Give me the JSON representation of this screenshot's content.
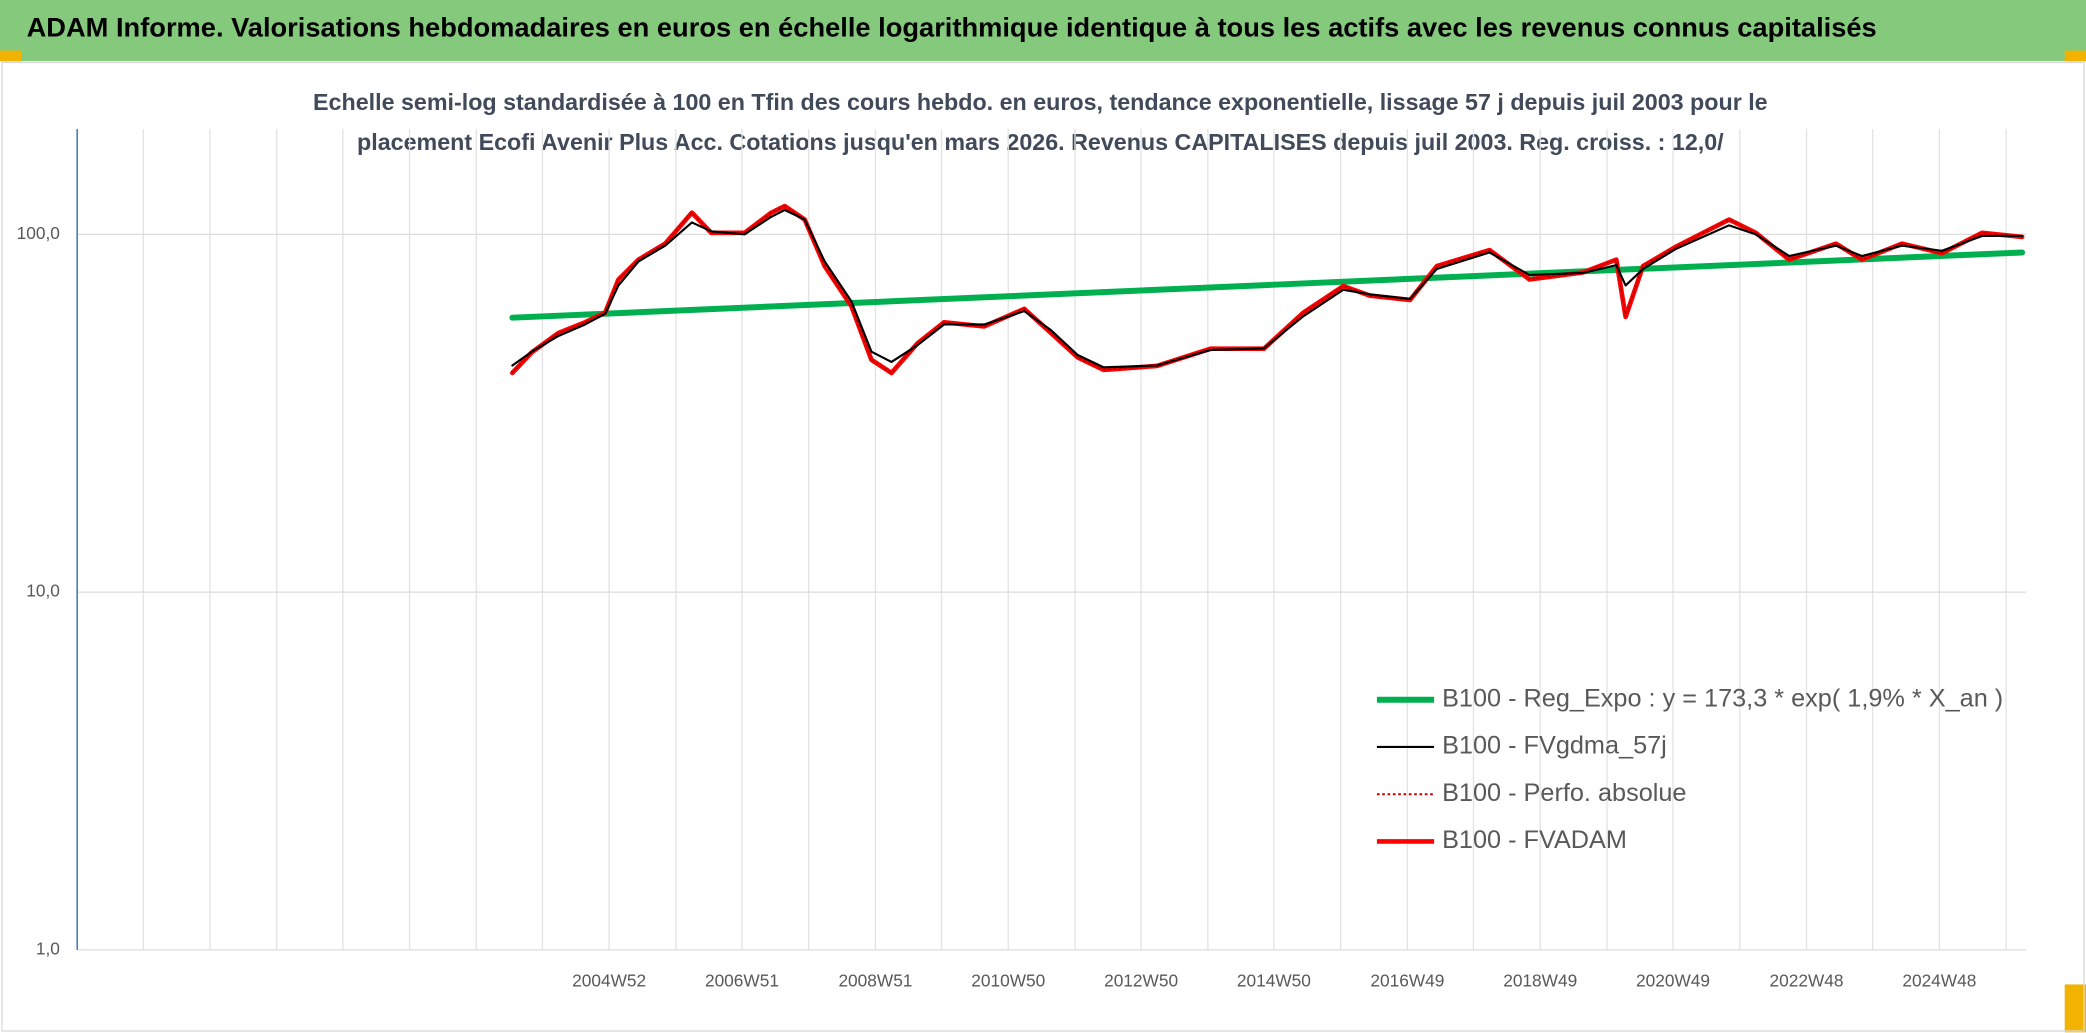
{
  "chart_data": {
    "type": "line",
    "title": "ADAM Informe. Valorisations hebdomadaires en euros en échelle logarithmique identique à tous les actifs avec les revenus connus capitalisés",
    "subtitle": [
      "Echelle semi-log standardisée à 100 en Tfin des cours hebdo. en euros, tendance exponentielle, lissage 57 j depuis juil 2003 pour le",
      "placement Ecofi Avenir Plus Acc. Cotations jusqu'en mars 2026. Revenus CAPITALISES depuis juil 2003. Reg. croiss. : 12,0/"
    ],
    "log_y": true,
    "grid": true,
    "legend_position": "right",
    "ylim": [
      1,
      197
    ],
    "yticks": [
      {
        "value": 1,
        "label": "1,0"
      },
      {
        "value": 10,
        "label": "10,0"
      },
      {
        "value": 100,
        "label": "100,0"
      }
    ],
    "xlim": [
      1997.02,
      2026.22
    ],
    "xticks": [
      {
        "value": 2004.99,
        "label": "2004W52"
      },
      {
        "value": 2006.98,
        "label": "2006W51"
      },
      {
        "value": 2008.98,
        "label": "2008W51"
      },
      {
        "value": 2010.97,
        "label": "2010W50"
      },
      {
        "value": 2012.96,
        "label": "2012W50"
      },
      {
        "value": 2014.95,
        "label": "2014W50"
      },
      {
        "value": 2016.95,
        "label": "2016W49"
      },
      {
        "value": 2018.94,
        "label": "2018W49"
      },
      {
        "value": 2020.93,
        "label": "2020W49"
      },
      {
        "value": 2022.93,
        "label": "2022W48"
      },
      {
        "value": 2024.92,
        "label": "2024W48"
      }
    ],
    "xminor": [
      1997.02,
      1998.01,
      1999.01,
      2000.01,
      2001.0,
      2002.0,
      2003.0,
      2003.99,
      2005.99,
      2007.98,
      2009.97,
      2011.97,
      2013.96,
      2015.95,
      2017.94,
      2019.94,
      2021.93,
      2023.92,
      2025.92
    ],
    "series": [
      {
        "name": "B100 - Reg_Expo : y = 173,3 * exp( 1,9% *  X_an )",
        "color": "#00b050",
        "width": 4.5,
        "dash": "none",
        "x": [
          2003.54,
          2015.0,
          2026.16
        ],
        "values": [
          58.5,
          72.4,
          89
        ]
      },
      {
        "name": "B100 - FVgdma_57j",
        "color": "#000000",
        "width": 1.6,
        "dash": "none",
        "x": [
          2003.54,
          2003.83,
          2004.23,
          2004.63,
          2004.93,
          2005.13,
          2005.43,
          2005.83,
          2006.23,
          2006.52,
          2007.02,
          2007.42,
          2007.62,
          2007.92,
          2008.22,
          2008.62,
          2008.92,
          2009.22,
          2009.61,
          2010.01,
          2010.61,
          2011.21,
          2011.61,
          2012.01,
          2012.4,
          2013.2,
          2014.0,
          2014.8,
          2015.39,
          2015.99,
          2016.39,
          2016.99,
          2017.39,
          2018.18,
          2018.78,
          2019.58,
          2020.08,
          2020.22,
          2020.48,
          2020.97,
          2021.77,
          2022.17,
          2022.67,
          2023.37,
          2023.76,
          2024.36,
          2024.96,
          2025.56,
          2026.16
        ],
        "values": [
          43,
          47,
          52,
          56,
          60,
          72,
          84,
          93,
          108,
          102,
          100,
          112,
          117,
          110,
          84,
          65,
          47,
          44,
          49,
          56,
          56,
          61,
          54,
          46,
          42.5,
          43,
          47.5,
          48,
          59,
          70,
          68,
          66,
          80,
          89,
          77,
          78,
          82,
          72,
          80,
          91,
          106,
          100,
          87,
          93,
          87,
          93,
          90,
          99,
          99
        ]
      },
      {
        "name": "B100 - Perfo. absolue",
        "color": "#c00000",
        "width": 1.2,
        "dash": "2 2",
        "x": [
          2003.54,
          2003.83,
          2004.23,
          2004.63,
          2004.93,
          2005.13,
          2005.43,
          2005.83,
          2006.23,
          2006.52,
          2007.02,
          2007.42,
          2007.62,
          2007.92,
          2008.22,
          2008.62,
          2008.92,
          2009.22,
          2009.61,
          2010.01,
          2010.61,
          2011.21,
          2011.61,
          2012.01,
          2012.4,
          2013.2,
          2014.0,
          2014.8,
          2015.39,
          2015.99,
          2016.39,
          2016.99,
          2017.39,
          2018.18,
          2018.78,
          2019.58,
          2020.08,
          2020.22,
          2020.48,
          2020.97,
          2021.77,
          2022.17,
          2022.67,
          2023.37,
          2023.76,
          2024.36,
          2024.96,
          2025.56,
          2026.16
        ],
        "values": [
          41,
          46.8,
          53,
          56.8,
          60.4,
          74.8,
          85,
          94.2,
          115,
          101,
          101,
          115,
          120,
          110,
          81.5,
          63,
          44.6,
          41,
          49.6,
          56.8,
          55.3,
          61.9,
          53,
          45.3,
          41.8,
          42.9,
          47.9,
          47.9,
          60.4,
          71.7,
          67.4,
          65.6,
          81.5,
          90.4,
          74.8,
          78.3,
          85,
          58.8,
          81.5,
          92.3,
          110,
          101,
          85,
          94.2,
          85,
          94.2,
          88.6,
          101,
          98.4
        ]
      },
      {
        "name": "B100 - FVADAM",
        "color": "#ff0000",
        "width": 3.5,
        "dash": "none",
        "x": [
          2003.54,
          2003.83,
          2004.23,
          2004.63,
          2004.93,
          2005.13,
          2005.43,
          2005.83,
          2006.23,
          2006.52,
          2007.02,
          2007.42,
          2007.62,
          2007.92,
          2008.22,
          2008.62,
          2008.92,
          2009.22,
          2009.61,
          2010.01,
          2010.61,
          2011.21,
          2011.61,
          2012.01,
          2012.4,
          2013.2,
          2014.0,
          2014.8,
          2015.39,
          2015.99,
          2016.39,
          2016.99,
          2017.39,
          2018.18,
          2018.78,
          2019.58,
          2020.08,
          2020.22,
          2020.48,
          2020.97,
          2021.77,
          2022.17,
          2022.67,
          2023.37,
          2023.76,
          2024.36,
          2024.96,
          2025.56,
          2026.16
        ],
        "values": [
          41,
          46.8,
          53,
          56.8,
          60.4,
          74.8,
          85,
          94.2,
          115,
          101,
          101,
          115,
          120,
          110,
          81.5,
          63,
          44.6,
          41,
          49.6,
          56.8,
          55.3,
          61.9,
          53,
          45.3,
          41.8,
          42.9,
          47.9,
          47.9,
          60.4,
          71.7,
          67.4,
          65.6,
          81.5,
          90.4,
          74.8,
          78.3,
          85,
          58.8,
          81.5,
          92.3,
          110,
          101,
          85,
          94.2,
          85,
          94.2,
          88.6,
          101,
          98.4
        ]
      }
    ],
    "draw_order": [
      0,
      3,
      2,
      1
    ]
  }
}
